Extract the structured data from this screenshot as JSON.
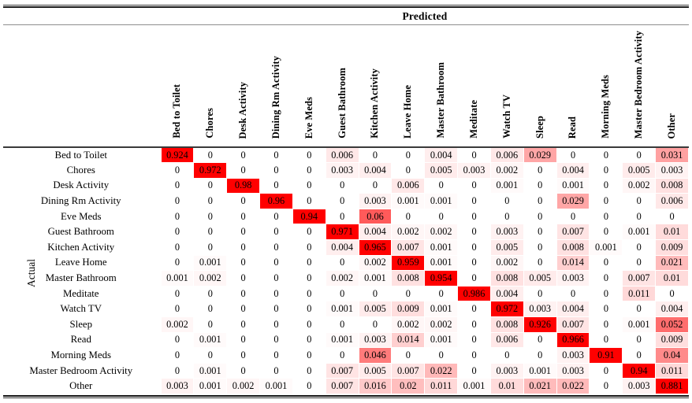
{
  "figure": {
    "heat_base_color": "#ff0000",
    "text_color": "#000000",
    "rule_color": "#1c1c1c"
  },
  "chart_data": {
    "type": "heatmap",
    "x_axis_label": "Predicted",
    "y_axis_label": "Actual",
    "x_categories": [
      "Bed to Toilet",
      "Chores",
      "Desk Activity",
      "Dining Rm Activity",
      "Eve Meds",
      "Guest Bathroom",
      "Kitchen Activity",
      "Leave Home",
      "Master Bathroom",
      "Meditate",
      "Watch TV",
      "Sleep",
      "Read",
      "Morning Meds",
      "Master Bedroom Activity",
      "Other"
    ],
    "y_categories": [
      "Bed to Toilet",
      "Chores",
      "Desk Activity",
      "Dining Rm Activity",
      "Eve Meds",
      "Guest Bathroom",
      "Kitchen Activity",
      "Leave Home",
      "Master Bathroom",
      "Meditate",
      "Watch TV",
      "Sleep",
      "Read",
      "Morning Meds",
      "Master Bedroom Activity",
      "Other"
    ],
    "values": [
      [
        0.924,
        0,
        0,
        0,
        0,
        0.006,
        0,
        0,
        0.004,
        0,
        0.006,
        0.029,
        0,
        0,
        0,
        0.031
      ],
      [
        0,
        0.972,
        0,
        0,
        0,
        0.003,
        0.004,
        0,
        0.005,
        0.003,
        0.002,
        0,
        0.004,
        0,
        0.005,
        0.003
      ],
      [
        0,
        0,
        0.98,
        0,
        0,
        0,
        0,
        0.006,
        0,
        0,
        0.001,
        0,
        0.001,
        0,
        0.002,
        0.008
      ],
      [
        0,
        0,
        0,
        0.96,
        0,
        0,
        0.003,
        0.001,
        0.001,
        0,
        0,
        0,
        0.029,
        0,
        0,
        0.006
      ],
      [
        0,
        0,
        0,
        0,
        0.94,
        0,
        0.06,
        0,
        0,
        0,
        0,
        0,
        0,
        0,
        0,
        0
      ],
      [
        0,
        0,
        0,
        0,
        0,
        0.971,
        0.004,
        0.002,
        0.002,
        0,
        0.003,
        0,
        0.007,
        0,
        0.001,
        0.01
      ],
      [
        0,
        0,
        0,
        0,
        0,
        0.004,
        0.965,
        0.007,
        0.001,
        0,
        0.005,
        0,
        0.008,
        0.001,
        0,
        0.009
      ],
      [
        0,
        0.001,
        0,
        0,
        0,
        0,
        0.002,
        0.959,
        0.001,
        0,
        0.002,
        0,
        0.014,
        0,
        0,
        0.021
      ],
      [
        0.001,
        0.002,
        0,
        0,
        0,
        0.002,
        0.001,
        0.008,
        0.954,
        0,
        0.008,
        0.005,
        0.003,
        0,
        0.007,
        0.01
      ],
      [
        0,
        0,
        0,
        0,
        0,
        0,
        0,
        0,
        0,
        0.986,
        0.004,
        0,
        0,
        0,
        0.011,
        0
      ],
      [
        0,
        0,
        0,
        0,
        0,
        0.001,
        0.005,
        0.009,
        0.001,
        0,
        0.972,
        0.003,
        0.004,
        0,
        0,
        0.004
      ],
      [
        0.002,
        0,
        0,
        0,
        0,
        0,
        0,
        0.002,
        0.002,
        0,
        0.008,
        0.926,
        0.007,
        0,
        0.001,
        0.052
      ],
      [
        0,
        0.001,
        0,
        0,
        0,
        0.001,
        0.003,
        0.014,
        0.001,
        0,
        0.006,
        0,
        0.966,
        0,
        0,
        0.009
      ],
      [
        0,
        0,
        0,
        0,
        0,
        0,
        0.046,
        0,
        0,
        0,
        0,
        0,
        0.003,
        0.91,
        0,
        0.04
      ],
      [
        0,
        0.001,
        0,
        0,
        0,
        0.007,
        0.005,
        0.007,
        0.022,
        0,
        0.003,
        0.001,
        0.003,
        0,
        0.94,
        0.011
      ],
      [
        0.003,
        0.001,
        0.002,
        0.001,
        0,
        0.007,
        0.016,
        0.02,
        0.011,
        0.001,
        0.01,
        0.021,
        0.022,
        0,
        0.003,
        0.881
      ]
    ],
    "value_range": [
      0,
      1
    ],
    "colormap": "white-to-red",
    "grid": false,
    "legend": "none"
  }
}
